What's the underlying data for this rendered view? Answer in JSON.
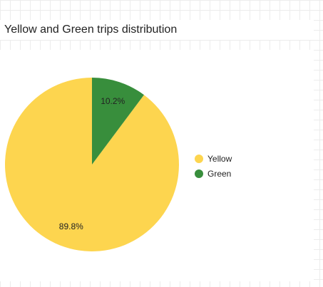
{
  "chart_data": {
    "type": "pie",
    "title": "Yellow and Green trips distribution",
    "categories": [
      "Yellow",
      "Green"
    ],
    "values": [
      89.8,
      10.2
    ],
    "data_labels": [
      "89.8%",
      "10.2%"
    ],
    "colors": [
      "#FDD54F",
      "#388E3C"
    ],
    "legend_position": "right"
  }
}
